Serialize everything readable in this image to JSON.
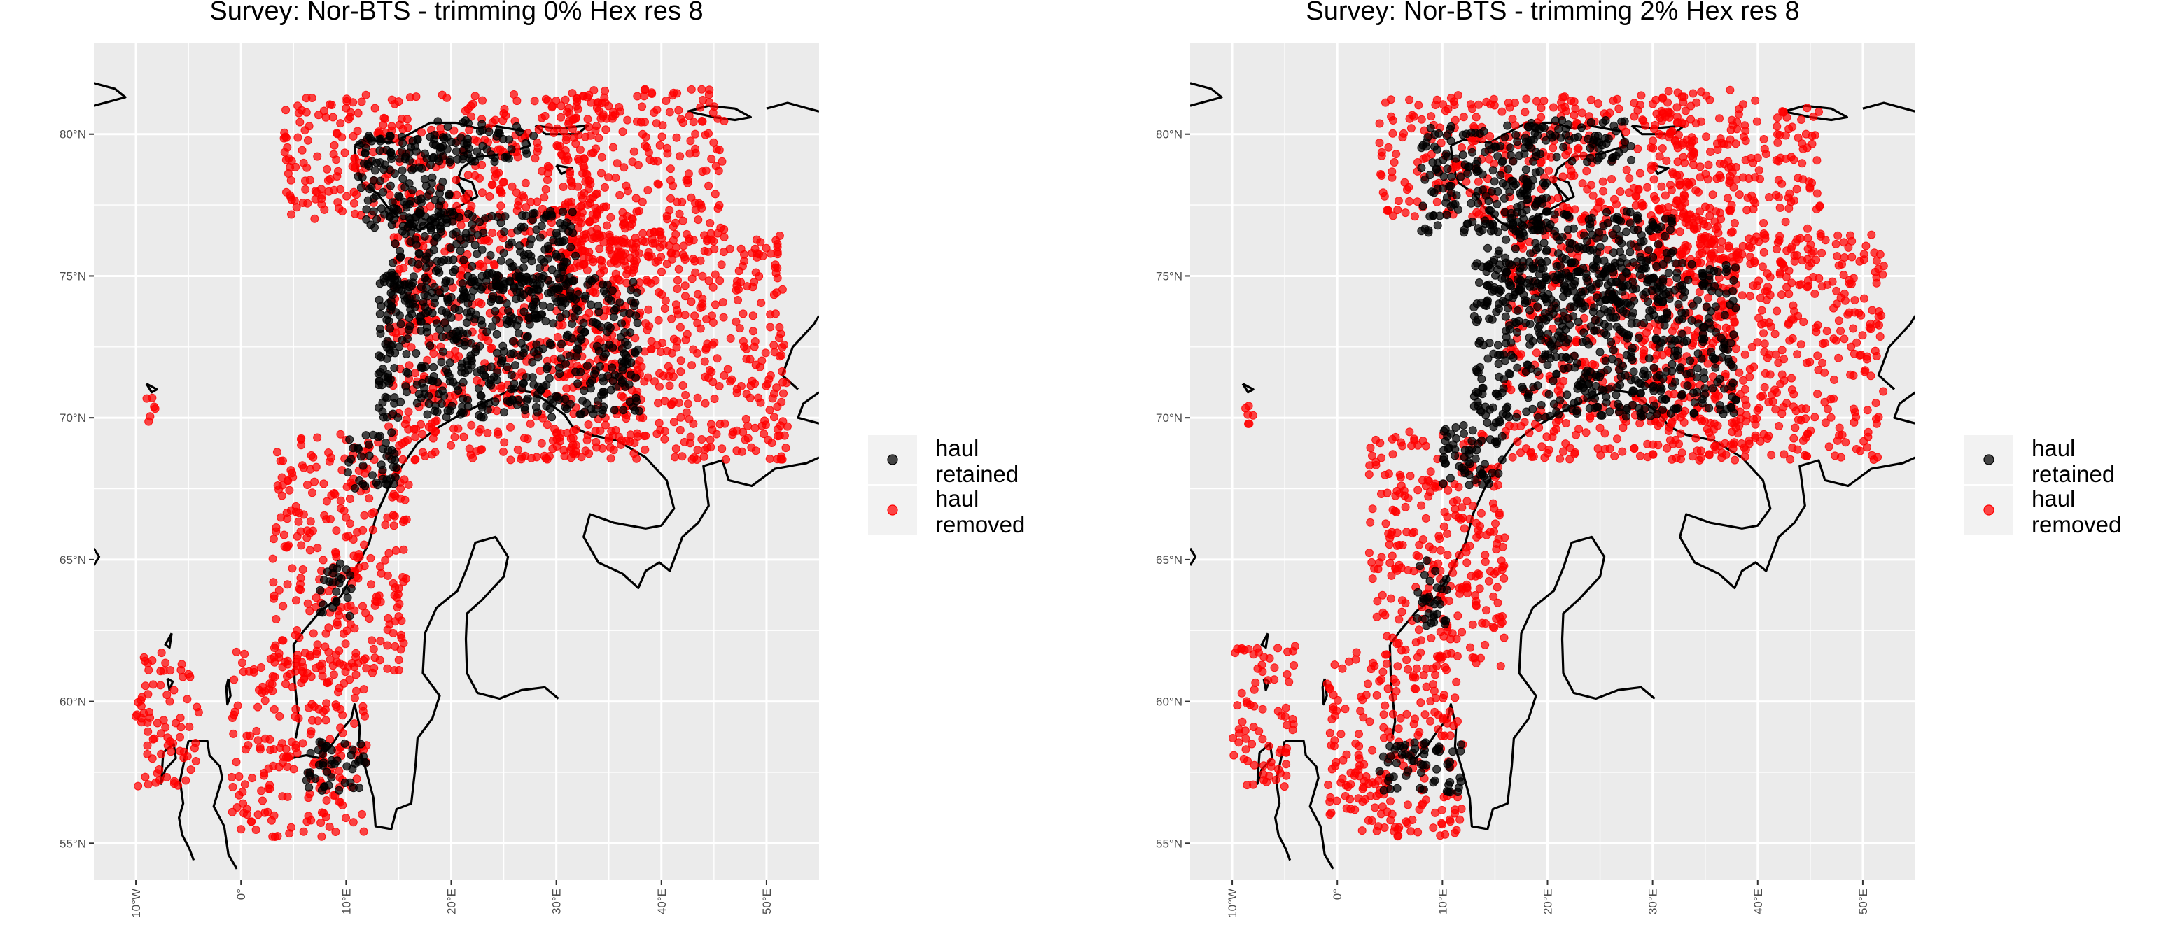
{
  "colors": {
    "panel_bg": "#EBEBEB",
    "grid": "#FFFFFF",
    "coast": "#000000",
    "retained": "#000000",
    "removed": "#FF0000",
    "legend_key_bg": "#F2F2F2"
  },
  "legend": {
    "items": [
      {
        "label_line1": "haul",
        "label_line2": "retained",
        "color_key": "retained"
      },
      {
        "label_line1": "haul",
        "label_line2": "removed",
        "color_key": "removed"
      }
    ]
  },
  "chart_data": [
    {
      "type": "scatter",
      "map": true,
      "title": "Survey: Nor-BTS - trimming 0% Hex res 8",
      "xlabel": "",
      "ylabel": "",
      "xlim": [
        -14,
        55
      ],
      "ylim": [
        53.7,
        83.2
      ],
      "x_ticks": [
        -10,
        0,
        10,
        20,
        30,
        40,
        50
      ],
      "x_tick_labels": [
        "10°W",
        "0°",
        "10°E",
        "20°E",
        "30°E",
        "40°E",
        "50°E"
      ],
      "y_ticks": [
        55,
        60,
        65,
        70,
        75,
        80
      ],
      "y_tick_labels": [
        "55°N",
        "60°N",
        "65°N",
        "70°N",
        "75°N",
        "80°N"
      ],
      "grid": true,
      "legend_position": "right",
      "trimming_percent": 0,
      "series": [
        {
          "name": "haul retained",
          "color_key": "retained",
          "regions": [
            {
              "lon": [
                6,
                12
              ],
              "lat": [
                56.8,
                58.6
              ]
            },
            {
              "lon": [
                7.5,
                10.5
              ],
              "lat": [
                63,
                65
              ]
            },
            {
              "lon": [
                10,
                15
              ],
              "lat": [
                67.5,
                69.5
              ]
            },
            {
              "lon": [
                13,
                38
              ],
              "lat": [
                70,
                75
              ]
            },
            {
              "lon": [
                14,
                32
              ],
              "lat": [
                74,
                77.3
              ]
            },
            {
              "lon": [
                11,
                20
              ],
              "lat": [
                76.5,
                80
              ]
            },
            {
              "lon": [
                18,
                28
              ],
              "lat": [
                79,
                80.5
              ]
            }
          ]
        },
        {
          "name": "haul removed",
          "color_key": "removed",
          "regions": [
            {
              "lon": [
                -1,
                12
              ],
              "lat": [
                55.2,
                61.8
              ]
            },
            {
              "lon": [
                3,
                16
              ],
              "lat": [
                61,
                69.5
              ]
            },
            {
              "lon": [
                14,
                38
              ],
              "lat": [
                68.5,
                77.5
              ]
            },
            {
              "lon": [
                30,
                52
              ],
              "lat": [
                68.5,
                76.5
              ]
            },
            {
              "lon": [
                30,
                46
              ],
              "lat": [
                75.5,
                81.6
              ]
            },
            {
              "lon": [
                4,
                34
              ],
              "lat": [
                77,
                81.4
              ]
            },
            {
              "lon": [
                -10,
                -4
              ],
              "lat": [
                57,
                62
              ]
            },
            {
              "lon": [
                -9,
                -8
              ],
              "lat": [
                69.5,
                70.8
              ]
            }
          ]
        }
      ]
    },
    {
      "type": "scatter",
      "map": true,
      "title": "Survey: Nor-BTS - trimming 2% Hex res 8",
      "xlabel": "",
      "ylabel": "",
      "xlim": [
        -14,
        55
      ],
      "ylim": [
        53.7,
        83.2
      ],
      "x_ticks": [
        -10,
        0,
        10,
        20,
        30,
        40,
        50
      ],
      "x_tick_labels": [
        "10°W",
        "0°",
        "10°E",
        "20°E",
        "30°E",
        "40°E",
        "50°E"
      ],
      "y_ticks": [
        55,
        60,
        65,
        70,
        75,
        80
      ],
      "y_tick_labels": [
        "55°N",
        "60°N",
        "65°N",
        "70°N",
        "75°N",
        "80°N"
      ],
      "grid": true,
      "legend_position": "right",
      "trimming_percent": 2,
      "series": [
        {
          "name": "haul retained",
          "color_key": "retained",
          "regions": [
            {
              "lon": [
                4,
                12
              ],
              "lat": [
                56.8,
                58.6
              ]
            },
            {
              "lon": [
                7.5,
                10.5
              ],
              "lat": [
                62.5,
                65
              ]
            },
            {
              "lon": [
                10,
                16
              ],
              "lat": [
                67.5,
                70
              ]
            },
            {
              "lon": [
                13,
                38
              ],
              "lat": [
                70,
                75.5
              ]
            },
            {
              "lon": [
                14,
                32
              ],
              "lat": [
                74,
                77.3
              ]
            },
            {
              "lon": [
                8,
                20
              ],
              "lat": [
                76.5,
                80.3
              ]
            },
            {
              "lon": [
                18,
                28
              ],
              "lat": [
                79,
                80.5
              ]
            }
          ]
        },
        {
          "name": "haul removed",
          "color_key": "removed",
          "regions": [
            {
              "lon": [
                -1,
                12
              ],
              "lat": [
                55.2,
                61.8
              ]
            },
            {
              "lon": [
                3,
                16
              ],
              "lat": [
                61,
                69.5
              ]
            },
            {
              "lon": [
                16,
                38
              ],
              "lat": [
                68.5,
                77.5
              ]
            },
            {
              "lon": [
                30,
                52
              ],
              "lat": [
                68.5,
                76.5
              ]
            },
            {
              "lon": [
                30,
                46
              ],
              "lat": [
                75.5,
                81.6
              ]
            },
            {
              "lon": [
                4,
                34
              ],
              "lat": [
                77,
                81.4
              ]
            },
            {
              "lon": [
                -10,
                -4
              ],
              "lat": [
                57,
                62
              ]
            },
            {
              "lon": [
                -9,
                -8
              ],
              "lat": [
                69.5,
                70.8
              ]
            }
          ]
        }
      ]
    }
  ]
}
